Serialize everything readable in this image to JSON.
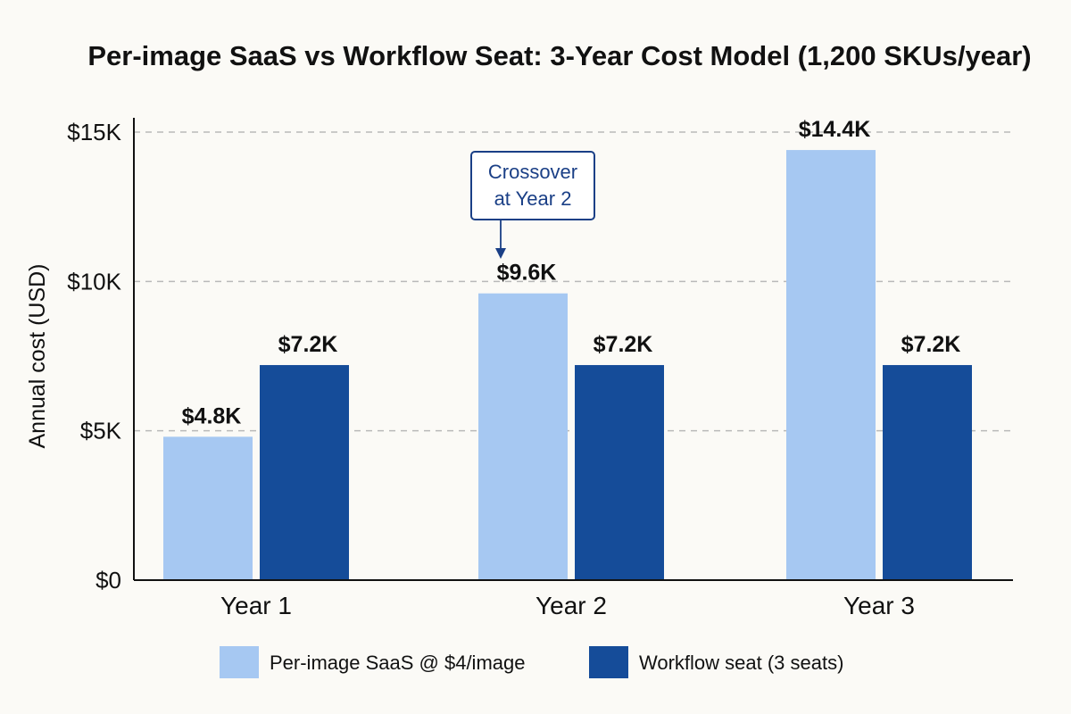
{
  "chart_data": {
    "type": "bar",
    "title": "Per-image SaaS vs Workflow Seat: 3-Year Cost Model (1,200 SKUs/year)",
    "xlabel": "",
    "ylabel": "Annual cost (USD)",
    "ylim": [
      0,
      15000
    ],
    "yticks": [
      {
        "value": 0,
        "label": "$0"
      },
      {
        "value": 5000,
        "label": "$5K"
      },
      {
        "value": 10000,
        "label": "$10K"
      },
      {
        "value": 15000,
        "label": "$15K"
      }
    ],
    "grid": true,
    "legend_position": "bottom",
    "categories": [
      "Year 1",
      "Year 2",
      "Year 3"
    ],
    "series": [
      {
        "name": "Per-image SaaS @ $4/image",
        "color": "#a6c8f2",
        "values": [
          4800,
          9600,
          14400
        ],
        "labels": [
          "$4.8K",
          "$9.6K",
          "$14.4K"
        ]
      },
      {
        "name": "Workflow seat (3 seats)",
        "color": "#154c99",
        "values": [
          7200,
          7200,
          7200
        ],
        "labels": [
          "$7.2K",
          "$7.2K",
          "$7.2K"
        ]
      }
    ],
    "annotation": {
      "lines": [
        "Crossover",
        "at Year 2"
      ],
      "category": "Year 2",
      "color": "#1a3f86"
    }
  }
}
